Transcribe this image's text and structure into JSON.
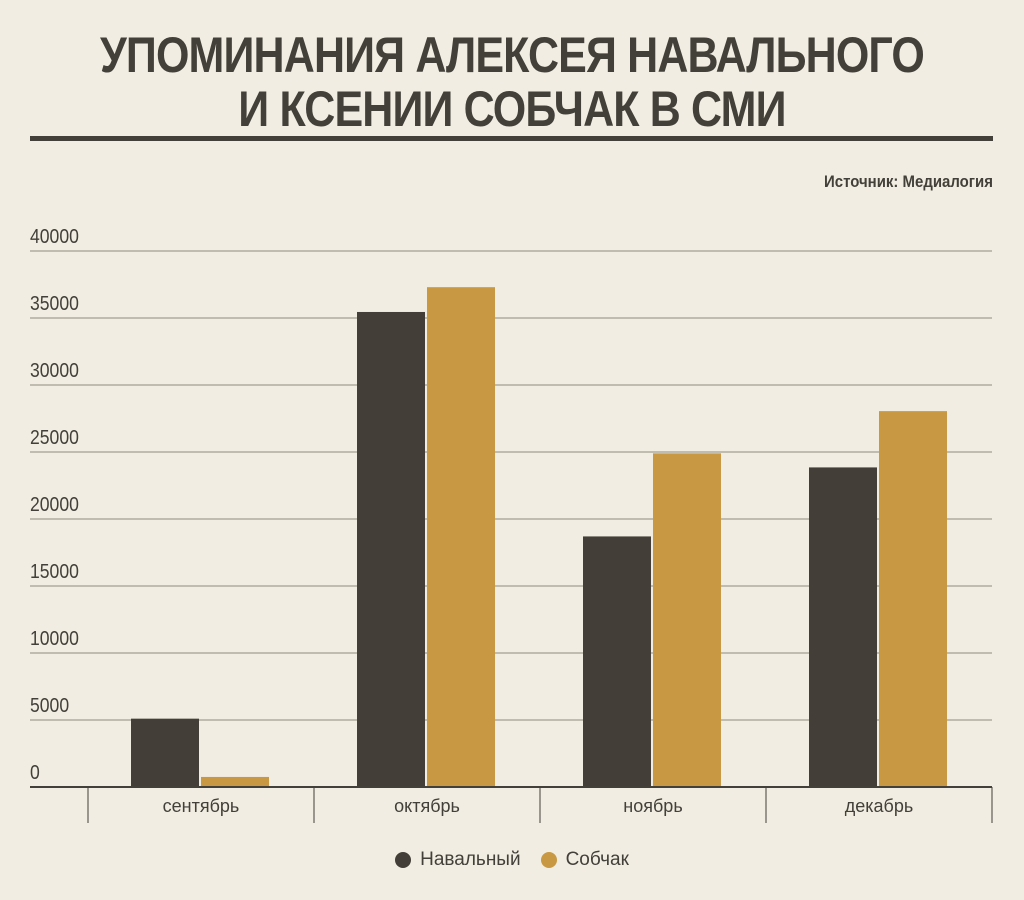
{
  "title_lines": [
    "УПОМИНАНИЯ АЛЕКСЕЯ НАВАЛЬНОГО",
    "И КСЕНИИ СОБЧАК В СМИ"
  ],
  "source": "Источник: Медиалогия",
  "chart_data": {
    "type": "bar",
    "title": "УПОМИНАНИЯ АЛЕКСЕЯ НАВАЛЬНОГО И КСЕНИИ СОБЧАК В СМИ",
    "categories": [
      "сентябрь",
      "октябрь",
      "ноябрь",
      "декабрь"
    ],
    "series": [
      {
        "name": "Навальный",
        "color": "#433f38",
        "values": [
          5100,
          35450,
          18700,
          23850
        ]
      },
      {
        "name": "Собчак",
        "color": "#c99842",
        "values": [
          750,
          37300,
          24900,
          28050
        ]
      }
    ],
    "yticks": [
      "0",
      "5000",
      "10000",
      "15000",
      "20000",
      "25000",
      "30000",
      "35000",
      "40000"
    ],
    "ylim": [
      0,
      40000
    ],
    "xlabel": "",
    "ylabel": "",
    "grid": true,
    "legend_placement": "bottom-center"
  }
}
